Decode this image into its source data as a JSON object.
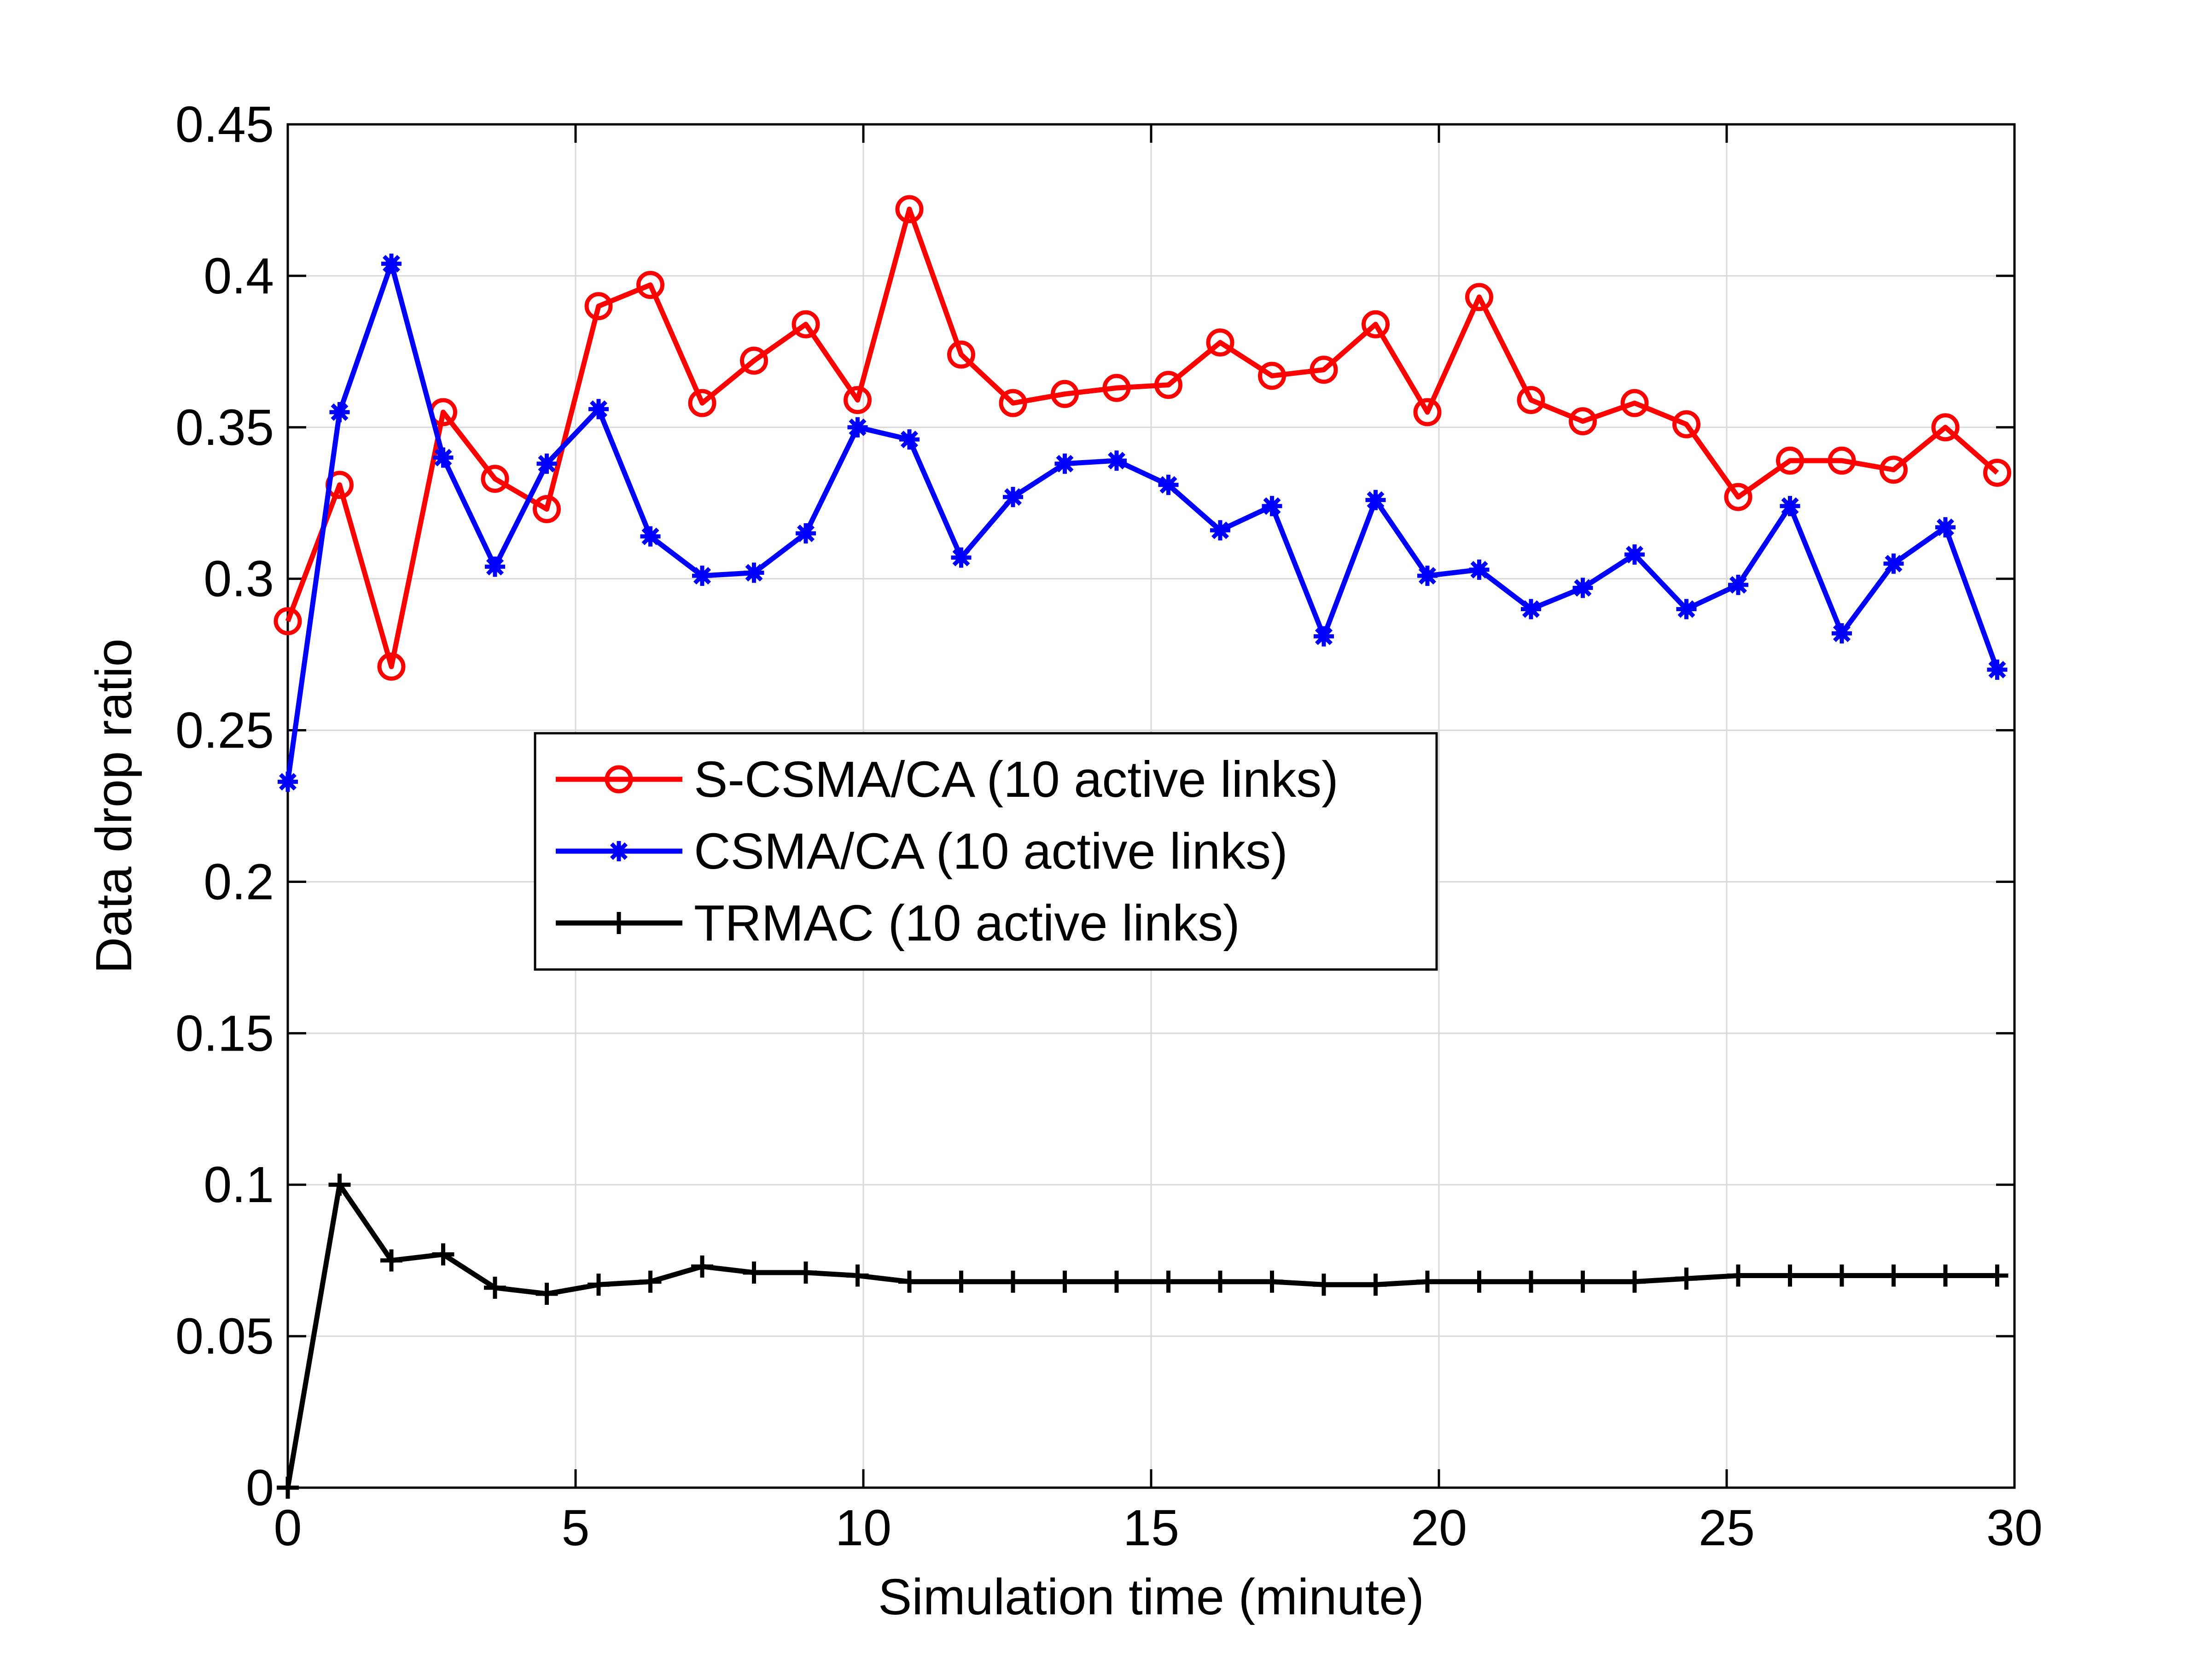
{
  "chart_data": {
    "type": "line",
    "title": "",
    "xlabel": "Simulation time (minute)",
    "ylabel": "Data drop ratio",
    "xlim": [
      0,
      30
    ],
    "ylim": [
      0,
      0.45
    ],
    "xticks": [
      0,
      5,
      10,
      15,
      20,
      25,
      30
    ],
    "xtick_labels": [
      "0",
      "5",
      "10",
      "15",
      "20",
      "25",
      "30"
    ],
    "yticks": [
      0,
      0.05,
      0.1,
      0.15,
      0.2,
      0.25,
      0.3,
      0.35,
      0.4,
      0.45
    ],
    "ytick_labels": [
      "0",
      "0.05",
      "0.1",
      "0.15",
      "0.2",
      "0.25",
      "0.3",
      "0.35",
      "0.4",
      "0.45"
    ],
    "grid": true,
    "legend_position": "center-left",
    "x": [
      0,
      0.9,
      1.8,
      2.7,
      3.6,
      4.5,
      5.4,
      6.3,
      7.2,
      8.1,
      9.0,
      9.9,
      10.8,
      11.7,
      12.6,
      13.5,
      14.4,
      15.3,
      16.2,
      17.1,
      18.0,
      18.9,
      19.8,
      20.7,
      21.6,
      22.5,
      23.4,
      24.3,
      25.2,
      26.1,
      27.0,
      27.9,
      28.8,
      29.7
    ],
    "series": [
      {
        "name": "S-CSMA/CA (10 active links)",
        "color": "#ff0000",
        "marker": "circle",
        "values": [
          0.286,
          0.331,
          0.271,
          0.355,
          0.333,
          0.323,
          0.39,
          0.397,
          0.358,
          0.372,
          0.384,
          0.359,
          0.422,
          0.374,
          0.358,
          0.361,
          0.363,
          0.364,
          0.378,
          0.367,
          0.369,
          0.384,
          0.355,
          0.393,
          0.359,
          0.352,
          0.358,
          0.351,
          0.327,
          0.339,
          0.339,
          0.336,
          0.35,
          0.335
        ]
      },
      {
        "name": "CSMA/CA (10 active links)",
        "color": "#0000ff",
        "marker": "asterisk",
        "values": [
          0.233,
          0.355,
          0.404,
          0.34,
          0.304,
          0.338,
          0.356,
          0.314,
          0.301,
          0.302,
          0.315,
          0.35,
          0.346,
          0.307,
          0.327,
          0.338,
          0.339,
          0.331,
          0.316,
          0.324,
          0.281,
          0.326,
          0.301,
          0.303,
          0.29,
          0.297,
          0.308,
          0.29,
          0.298,
          0.324,
          0.282,
          0.305,
          0.317,
          0.27
        ]
      },
      {
        "name": "TRMAC (10 active links)",
        "color": "#000000",
        "marker": "plus",
        "values": [
          0.0,
          0.1,
          0.075,
          0.077,
          0.066,
          0.064,
          0.067,
          0.068,
          0.073,
          0.071,
          0.071,
          0.07,
          0.068,
          0.068,
          0.068,
          0.068,
          0.068,
          0.068,
          0.068,
          0.068,
          0.067,
          0.067,
          0.068,
          0.068,
          0.068,
          0.068,
          0.068,
          0.069,
          0.07,
          0.07,
          0.07,
          0.07,
          0.07,
          0.07
        ]
      }
    ]
  }
}
